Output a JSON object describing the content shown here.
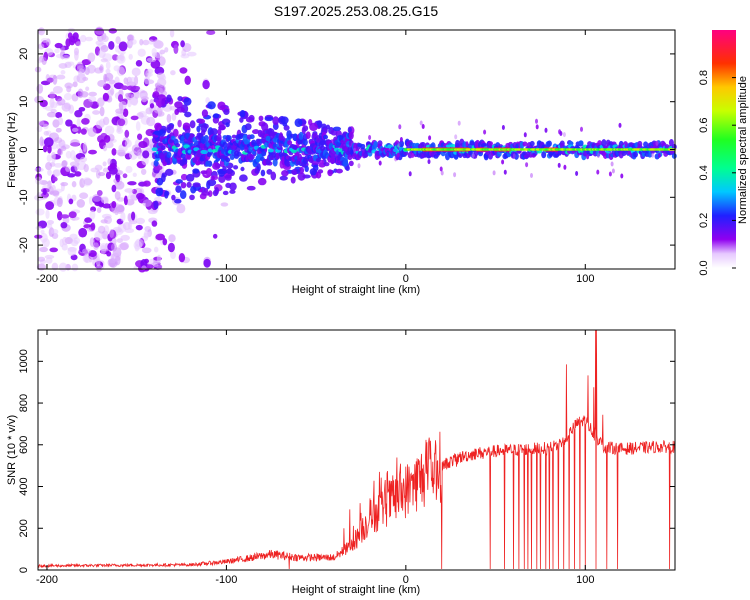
{
  "title": "S197.2025.253.08.25.G15",
  "chart_data": [
    {
      "type": "heatmap",
      "name": "spectrogram",
      "xlabel": "Height of straight line (km)",
      "ylabel": "Frequency (Hz)",
      "xlim": [
        -205,
        150
      ],
      "ylim": [
        -25,
        25
      ],
      "xticks": [
        -200,
        -100,
        0,
        100
      ],
      "xtick_labels": [
        "-200",
        "-100",
        "0",
        "100"
      ],
      "yticks": [
        -20,
        -10,
        0,
        10,
        20
      ],
      "ytick_labels": [
        "-20",
        "-10",
        "0",
        "10",
        "20"
      ],
      "colorbar": {
        "label": "Normalized spectral amplitude",
        "range": [
          0,
          1
        ],
        "ticks": [
          0.0,
          0.2,
          0.4,
          0.6,
          0.8
        ],
        "tick_labels": [
          "0.0",
          "0.2",
          "0.4",
          "0.6",
          "0.8"
        ]
      },
      "features": {
        "noise_region_km": [
          -205,
          -140
        ],
        "noise_amplitude": 0.08,
        "band_start_km": -140,
        "band_center_freq_hz": 0,
        "strong_segments_km": [
          [
            10,
            35
          ],
          [
            40,
            46
          ],
          [
            50,
            58
          ],
          [
            78,
            84
          ]
        ],
        "strong_amplitude": 0.95
      }
    },
    {
      "type": "line",
      "name": "snr",
      "xlabel": "Height of straight line (km)",
      "ylabel": "SNR (10 * v/v)",
      "xlim": [
        -205,
        150
      ],
      "ylim": [
        0,
        1150
      ],
      "xticks": [
        -200,
        -100,
        0,
        100
      ],
      "xtick_labels": [
        "-200",
        "-100",
        "0",
        "100"
      ],
      "yticks": [
        0,
        200,
        400,
        600,
        800,
        1000
      ],
      "ytick_labels": [
        "0",
        "200",
        "400",
        "600",
        "800",
        "1000"
      ],
      "color": "#ee2222",
      "envelope": {
        "x": [
          -205,
          -120,
          -100,
          -85,
          -75,
          -60,
          -40,
          -30,
          -20,
          -10,
          0,
          10,
          20,
          30,
          40,
          50,
          60,
          70,
          80,
          85,
          90,
          95,
          100,
          105,
          110,
          120,
          130,
          140,
          150
        ],
        "y": [
          20,
          25,
          40,
          60,
          75,
          60,
          60,
          120,
          250,
          320,
          380,
          450,
          500,
          540,
          560,
          570,
          575,
          580,
          585,
          600,
          640,
          700,
          720,
          650,
          590,
          580,
          585,
          590,
          590
        ]
      },
      "dropouts_km": [
        -65,
        20,
        47,
        55,
        60,
        63,
        66,
        68,
        70,
        73,
        75,
        78,
        80,
        82,
        85,
        88,
        91,
        94,
        97,
        100,
        106,
        112,
        118,
        147
      ],
      "peak": {
        "x": 106,
        "y": 1150
      }
    }
  ]
}
